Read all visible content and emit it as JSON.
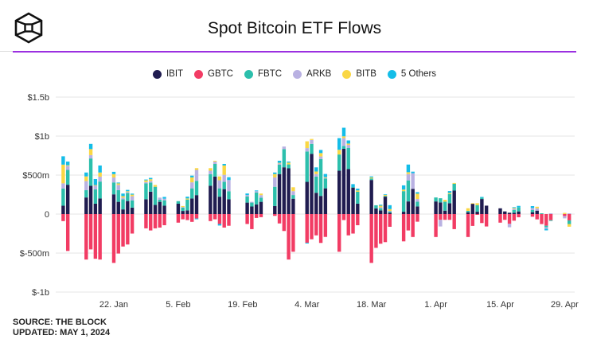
{
  "header": {
    "title": "Spot Bitcoin ETF Flows"
  },
  "footer": {
    "source": "SOURCE: THE BLOCK",
    "updated": "UPDATED: MAY 1, 2024"
  },
  "chart_data": {
    "type": "bar",
    "stacked": true,
    "title": "Spot Bitcoin ETF Flows",
    "unit": "USD millions",
    "legend_position": "top",
    "grid": true,
    "ylim": [
      -1000,
      1500
    ],
    "y_ticks": [
      {
        "value": 1500,
        "label": "$1.5b"
      },
      {
        "value": 1000,
        "label": "$1b"
      },
      {
        "value": 500,
        "label": "$500m"
      },
      {
        "value": 0,
        "label": "0"
      },
      {
        "value": -500,
        "label": "$-500m"
      },
      {
        "value": -1000,
        "label": "$-1b"
      }
    ],
    "x_ticks": [
      {
        "date": "2024-01-22",
        "label": "22. Jan"
      },
      {
        "date": "2024-02-05",
        "label": "5. Feb"
      },
      {
        "date": "2024-02-19",
        "label": "19. Feb"
      },
      {
        "date": "2024-03-04",
        "label": "4. Mar"
      },
      {
        "date": "2024-03-18",
        "label": "18. Mar"
      },
      {
        "date": "2024-04-01",
        "label": "1. Apr"
      },
      {
        "date": "2024-04-15",
        "label": "15. Apr"
      },
      {
        "date": "2024-04-29",
        "label": "29. Apr"
      }
    ],
    "dates": [
      "2024-01-11",
      "2024-01-12",
      "2024-01-16",
      "2024-01-17",
      "2024-01-18",
      "2024-01-19",
      "2024-01-22",
      "2024-01-23",
      "2024-01-24",
      "2024-01-25",
      "2024-01-26",
      "2024-01-29",
      "2024-01-30",
      "2024-01-31",
      "2024-02-01",
      "2024-02-02",
      "2024-02-05",
      "2024-02-06",
      "2024-02-07",
      "2024-02-08",
      "2024-02-09",
      "2024-02-12",
      "2024-02-13",
      "2024-02-14",
      "2024-02-15",
      "2024-02-16",
      "2024-02-20",
      "2024-02-21",
      "2024-02-22",
      "2024-02-23",
      "2024-02-26",
      "2024-02-27",
      "2024-02-28",
      "2024-02-29",
      "2024-03-01",
      "2024-03-04",
      "2024-03-05",
      "2024-03-06",
      "2024-03-07",
      "2024-03-08",
      "2024-03-11",
      "2024-03-12",
      "2024-03-13",
      "2024-03-14",
      "2024-03-15",
      "2024-03-18",
      "2024-03-19",
      "2024-03-20",
      "2024-03-21",
      "2024-03-22",
      "2024-03-25",
      "2024-03-26",
      "2024-03-27",
      "2024-03-28",
      "2024-04-01",
      "2024-04-02",
      "2024-04-03",
      "2024-04-04",
      "2024-04-05",
      "2024-04-08",
      "2024-04-09",
      "2024-04-10",
      "2024-04-11",
      "2024-04-12",
      "2024-04-15",
      "2024-04-16",
      "2024-04-17",
      "2024-04-18",
      "2024-04-19",
      "2024-04-22",
      "2024-04-23",
      "2024-04-24",
      "2024-04-25",
      "2024-04-26",
      "2024-04-29",
      "2024-04-30"
    ],
    "series": [
      {
        "name": "IBIT",
        "color": "#201c50",
        "values": [
          107,
          376,
          213,
          363,
          133,
          200,
          253,
          157,
          60,
          167,
          83,
          190,
          287,
          117,
          157,
          107,
          133,
          40,
          47,
          200,
          243,
          363,
          480,
          223,
          320,
          190,
          147,
          97,
          123,
          157,
          103,
          513,
          600,
          587,
          197,
          413,
          773,
          273,
          233,
          330,
          557,
          837,
          577,
          340,
          133,
          437,
          73,
          47,
          223,
          17,
          30,
          162,
          324,
          98,
          162,
          149,
          44,
          139,
          301,
          24,
          132,
          30,
          193,
          108,
          74,
          34,
          17,
          17,
          34,
          24,
          44,
          0,
          0,
          0,
          0,
          0
        ]
      },
      {
        "name": "GBTC",
        "color": "#f23c64",
        "values": [
          -90,
          -473,
          -583,
          -453,
          -573,
          -583,
          -626,
          -506,
          -416,
          -390,
          -250,
          -183,
          -210,
          -183,
          -173,
          -143,
          -110,
          -67,
          -77,
          -100,
          -57,
          -90,
          -67,
          -127,
          -173,
          -150,
          -127,
          -193,
          -50,
          -40,
          -23,
          -120,
          -217,
          -583,
          -483,
          -367,
          -323,
          -273,
          -370,
          -293,
          -483,
          -77,
          -273,
          -250,
          -143,
          -626,
          -433,
          -380,
          -360,
          -163,
          -350,
          -210,
          -294,
          -98,
          -294,
          -74,
          -74,
          -74,
          -193,
          -294,
          -152,
          -10,
          -115,
          -159,
          -110,
          -74,
          -125,
          -85,
          -41,
          -34,
          -68,
          -128,
          -149,
          -78,
          -25,
          -81
        ]
      },
      {
        "name": "FBTC",
        "color": "#2cbfac",
        "values": [
          220,
          190,
          93,
          350,
          183,
          217,
          153,
          150,
          130,
          103,
          93,
          203,
          117,
          233,
          27,
          70,
          33,
          43,
          140,
          130,
          183,
          150,
          163,
          107,
          93,
          103,
          80,
          50,
          153,
          53,
          247,
          120,
          233,
          50,
          47,
          390,
          127,
          207,
          473,
          127,
          207,
          37,
          270,
          7,
          153,
          20,
          40,
          27,
          10,
          17,
          264,
          270,
          0,
          61,
          51,
          54,
          115,
          118,
          88,
          17,
          0,
          85,
          17,
          0,
          0,
          0,
          0,
          34,
          51,
          27,
          0,
          10,
          -20,
          -10,
          0,
          -47
        ]
      },
      {
        "name": "ARKB",
        "color": "#b9b1e2",
        "values": [
          67,
          50,
          117,
          43,
          53,
          63,
          63,
          67,
          20,
          13,
          53,
          17,
          20,
          0,
          27,
          20,
          0,
          7,
          0,
          77,
          140,
          43,
          30,
          103,
          90,
          143,
          17,
          10,
          17,
          33,
          120,
          17,
          33,
          0,
          50,
          43,
          50,
          33,
          33,
          10,
          0,
          100,
          40,
          0,
          0,
          0,
          0,
          13,
          0,
          7,
          0,
          81,
          200,
          34,
          0,
          -85,
          0,
          0,
          0,
          0,
          0,
          0,
          0,
          0,
          0,
          0,
          -44,
          17,
          0,
          27,
          30,
          0,
          -20,
          10,
          -30,
          10
        ]
      },
      {
        "name": "BITB",
        "color": "#fad744",
        "values": [
          240,
          10,
          60,
          77,
          3,
          53,
          43,
          20,
          20,
          10,
          20,
          23,
          23,
          23,
          0,
          0,
          0,
          13,
          13,
          63,
          23,
          33,
          10,
          50,
          120,
          0,
          0,
          0,
          0,
          20,
          43,
          7,
          0,
          23,
          50,
          87,
          13,
          33,
          43,
          7,
          60,
          23,
          17,
          0,
          17,
          13,
          0,
          20,
          13,
          23,
          20,
          24,
          0,
          68,
          0,
          0,
          24,
          14,
          10,
          34,
          7,
          24,
          0,
          0,
          0,
          0,
          0,
          10,
          0,
          0,
          20,
          0,
          0,
          0,
          15,
          -34
        ]
      },
      {
        "name": "5 Others",
        "color": "#14bde8",
        "values": [
          107,
          47,
          50,
          67,
          77,
          90,
          30,
          10,
          33,
          17,
          13,
          10,
          17,
          0,
          0,
          23,
          0,
          0,
          23,
          23,
          -10,
          0,
          0,
          -20,
          20,
          37,
          20,
          0,
          10,
          0,
          20,
          27,
          0,
          13,
          0,
          -10,
          0,
          53,
          40,
          40,
          150,
          110,
          40,
          37,
          23,
          13,
          0,
          13,
          7,
          50,
          54,
          98,
          20,
          20,
          0,
          0,
          0,
          24,
          0,
          0,
          0,
          0,
          10,
          0,
          0,
          0,
          0,
          10,
          20,
          24,
          0,
          0,
          -20,
          0,
          0,
          0
        ]
      }
    ]
  }
}
